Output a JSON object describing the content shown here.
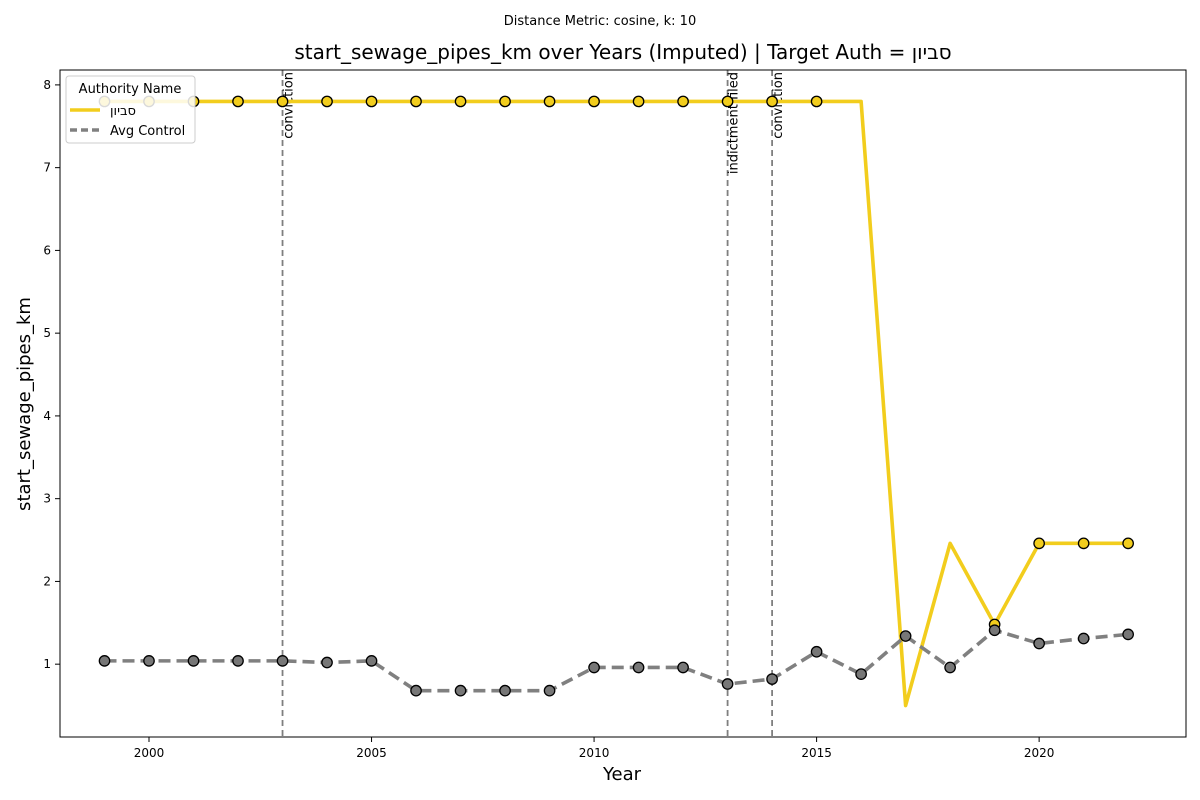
{
  "suptitle": "Distance Metric: cosine, k: 10",
  "chart_data": {
    "type": "line",
    "title": "start_sewage_pipes_km over Years (Imputed) | Target Auth = סביון",
    "xlabel": "Year",
    "ylabel": "start_sewage_pipes_km",
    "xlim": [
      1998,
      2023.3
    ],
    "ylim": [
      0.12,
      8.18
    ],
    "xticks": [
      2000,
      2005,
      2010,
      2015,
      2020
    ],
    "yticks": [
      1,
      2,
      3,
      4,
      5,
      6,
      7,
      8
    ],
    "grid": false,
    "legend": {
      "title": "Authority Name",
      "placement": "top-left",
      "entries": [
        "סביון",
        "Avg Control"
      ]
    },
    "colors": {
      "target": "#f2cd1d",
      "control": "#808080",
      "marker": "#777777",
      "event_line": "#7f7f7f"
    },
    "series": [
      {
        "name": "סביון",
        "style": "solid",
        "x": [
          1999,
          2000,
          2001,
          2002,
          2003,
          2004,
          2005,
          2006,
          2007,
          2008,
          2009,
          2010,
          2011,
          2012,
          2013,
          2014,
          2015,
          2016,
          2017,
          2018,
          2019,
          2020,
          2021,
          2022
        ],
        "y": [
          7.8,
          7.8,
          7.8,
          7.8,
          7.8,
          7.8,
          7.8,
          7.8,
          7.8,
          7.8,
          7.8,
          7.8,
          7.8,
          7.8,
          7.8,
          7.8,
          7.8,
          7.8,
          0.5,
          2.46,
          1.48,
          2.46,
          2.46,
          2.46
        ],
        "markers_x": [
          1999,
          2000,
          2001,
          2002,
          2003,
          2004,
          2005,
          2006,
          2007,
          2008,
          2009,
          2010,
          2011,
          2012,
          2013,
          2014,
          2015,
          2019,
          2020,
          2021,
          2022
        ],
        "markers_y": [
          7.8,
          7.8,
          7.8,
          7.8,
          7.8,
          7.8,
          7.8,
          7.8,
          7.8,
          7.8,
          7.8,
          7.8,
          7.8,
          7.8,
          7.8,
          7.8,
          7.8,
          1.48,
          2.46,
          2.46,
          2.46
        ]
      },
      {
        "name": "Avg Control",
        "style": "dashed",
        "x": [
          1999,
          2000,
          2001,
          2002,
          2003,
          2004,
          2005,
          2006,
          2007,
          2008,
          2009,
          2010,
          2011,
          2012,
          2013,
          2014,
          2015,
          2016,
          2017,
          2018,
          2019,
          2020,
          2021,
          2022
        ],
        "y": [
          1.04,
          1.04,
          1.04,
          1.04,
          1.04,
          1.02,
          1.04,
          0.68,
          0.68,
          0.68,
          0.68,
          0.96,
          0.96,
          0.96,
          0.76,
          0.82,
          1.15,
          0.88,
          1.34,
          0.96,
          1.41,
          1.25,
          1.31,
          1.36
        ],
        "markers_x": [
          1999,
          2000,
          2001,
          2002,
          2003,
          2004,
          2005,
          2006,
          2007,
          2008,
          2009,
          2010,
          2011,
          2012,
          2013,
          2014,
          2015,
          2016,
          2017,
          2018,
          2019,
          2020,
          2021,
          2022
        ],
        "markers_y": [
          1.04,
          1.04,
          1.04,
          1.04,
          1.04,
          1.02,
          1.04,
          0.68,
          0.68,
          0.68,
          0.68,
          0.96,
          0.96,
          0.96,
          0.76,
          0.82,
          1.15,
          0.88,
          1.34,
          0.96,
          1.41,
          1.25,
          1.31,
          1.36
        ]
      }
    ],
    "annotations": [
      {
        "x": 2003,
        "label": "conviction"
      },
      {
        "x": 2013,
        "label": "indictment filed"
      },
      {
        "x": 2014,
        "label": "conviction"
      }
    ]
  }
}
